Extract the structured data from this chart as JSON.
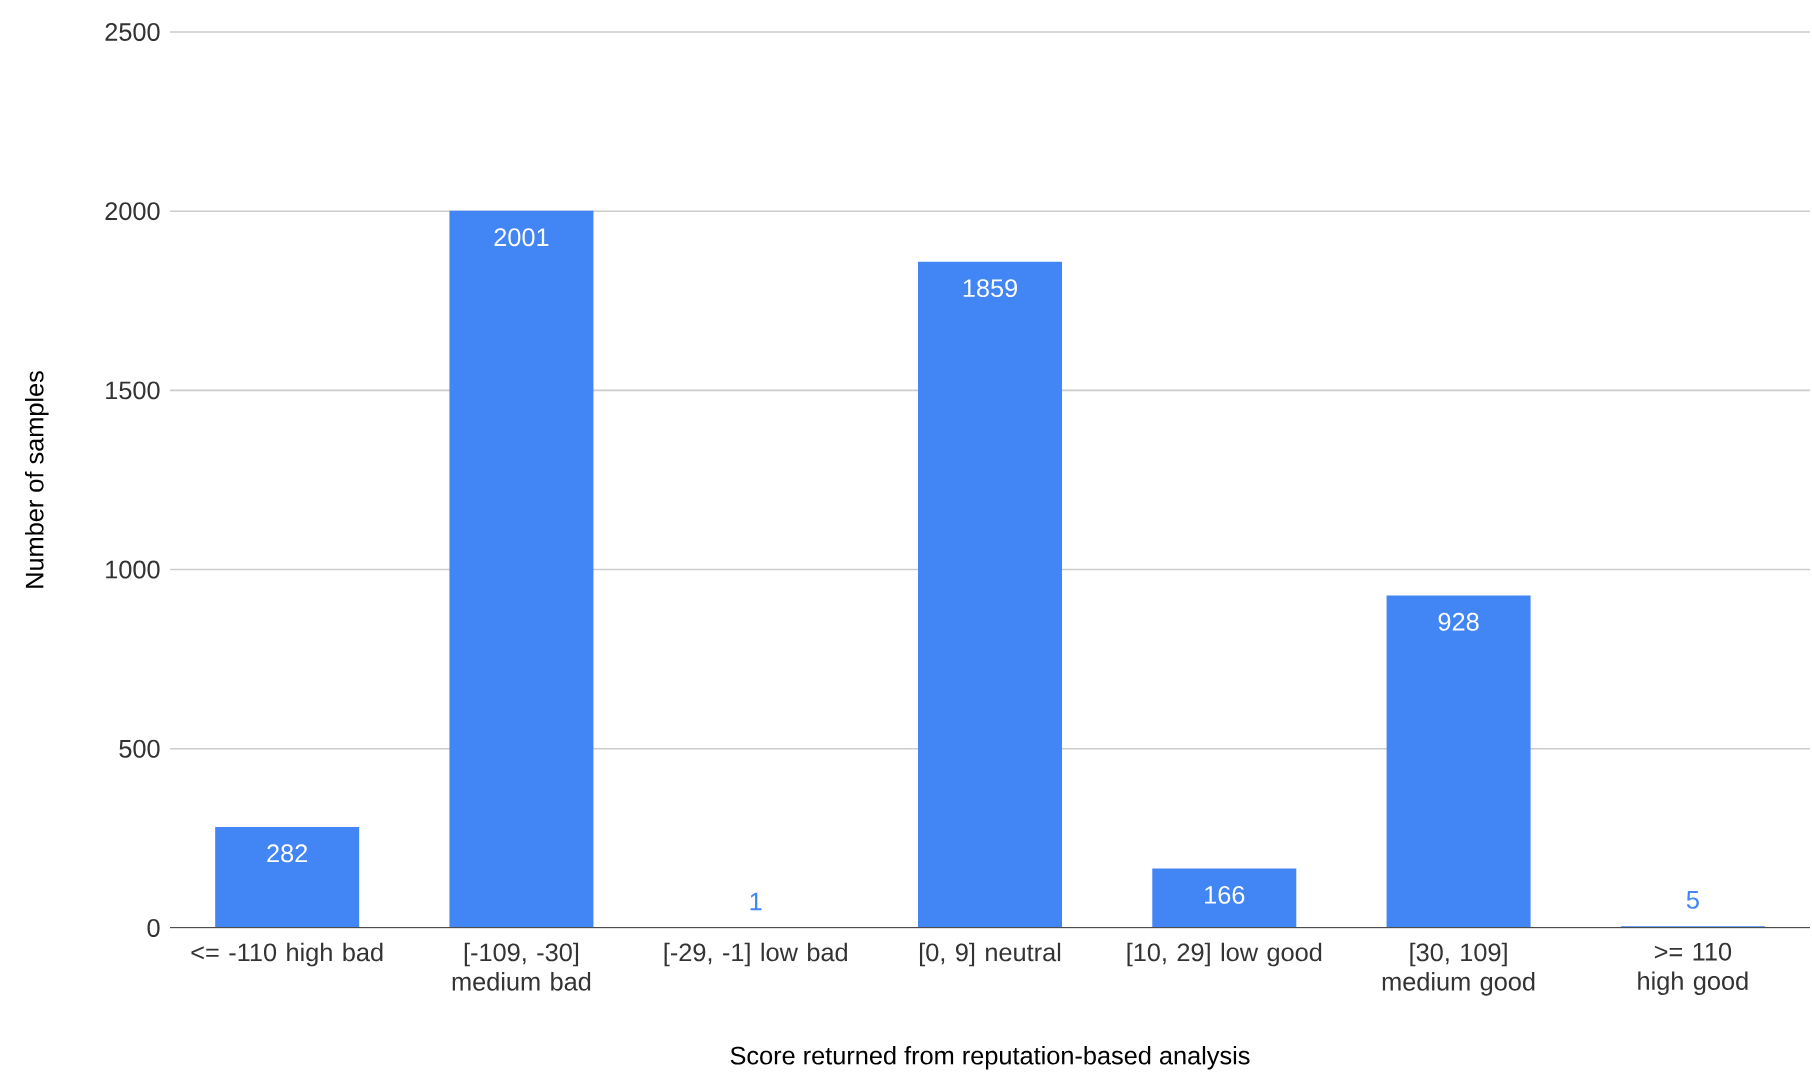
{
  "chart_data": {
    "type": "bar",
    "xlabel": "Score returned from reputation-based analysis",
    "ylabel": "Number of samples",
    "categories": [
      "<= -110 high bad",
      "[-109, -30] medium bad",
      "[-29, -1] low bad",
      "[0, 9] neutral",
      "[10, 29] low good",
      "[30, 109] medium good",
      ">= 110 high good"
    ],
    "values": [
      282,
      2001,
      1,
      1859,
      166,
      928,
      5
    ],
    "color": "#4285f4",
    "ylim": [
      0,
      2500
    ],
    "yticks": [
      0,
      500,
      1000,
      1500,
      2000,
      2500
    ],
    "grid": "y",
    "data_labels": true
  }
}
